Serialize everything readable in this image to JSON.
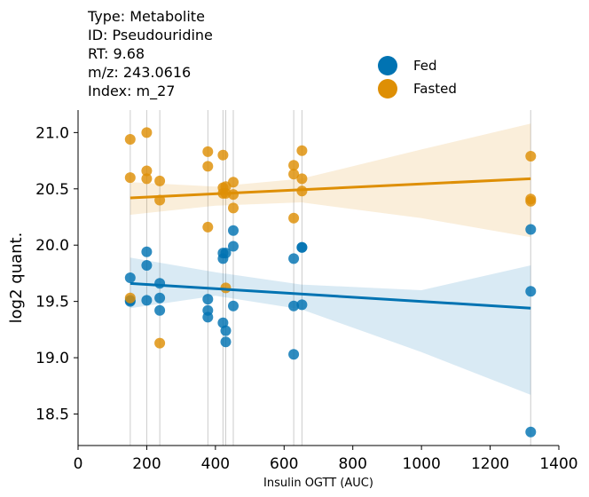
{
  "info": {
    "lines": [
      "Type: Metabolite",
      "ID: Pseudouridine",
      "RT: 9.68",
      "m/z: 243.0616",
      "Index: m_27"
    ]
  },
  "chart_data": {
    "type": "scatter",
    "xlabel": "Insulin OGTT (AUC)",
    "ylabel": "log2 quant.",
    "xlim": [
      0,
      1400
    ],
    "ylim": [
      18.22,
      21.2
    ],
    "x_ticks": [
      "0",
      "200",
      "400",
      "600",
      "800",
      "1000",
      "1200",
      "1400"
    ],
    "y_ticks": [
      "18.5",
      "19.0",
      "19.5",
      "20.0",
      "20.5",
      "21.0"
    ],
    "vertical_reference_lines": [
      152,
      200,
      238,
      378,
      422,
      430,
      452,
      628,
      652,
      1318
    ],
    "legend_position": "upper-right",
    "series": [
      {
        "name": "Fed",
        "color": "#0173b2",
        "points": [
          [
            152,
            19.71
          ],
          [
            152,
            19.51
          ],
          [
            152,
            19.5
          ],
          [
            200,
            19.94
          ],
          [
            200,
            19.82
          ],
          [
            200,
            19.51
          ],
          [
            238,
            19.66
          ],
          [
            238,
            19.53
          ],
          [
            238,
            19.42
          ],
          [
            378,
            19.52
          ],
          [
            378,
            19.42
          ],
          [
            378,
            19.36
          ],
          [
            422,
            19.93
          ],
          [
            422,
            19.88
          ],
          [
            422,
            19.31
          ],
          [
            430,
            19.93
          ],
          [
            430,
            19.24
          ],
          [
            430,
            19.14
          ],
          [
            452,
            20.13
          ],
          [
            452,
            19.99
          ],
          [
            452,
            19.46
          ],
          [
            628,
            19.88
          ],
          [
            628,
            19.46
          ],
          [
            628,
            19.03
          ],
          [
            652,
            19.98
          ],
          [
            652,
            19.98
          ],
          [
            652,
            19.47
          ],
          [
            1318,
            20.14
          ],
          [
            1318,
            19.59
          ],
          [
            1318,
            18.34
          ]
        ],
        "fit": {
          "x": [
            152,
            1318
          ],
          "y": [
            19.66,
            19.44
          ]
        },
        "ci": {
          "x": [
            152,
            400,
            650,
            1000,
            1318
          ],
          "lower": [
            19.44,
            19.55,
            19.43,
            19.05,
            18.67
          ],
          "upper": [
            19.89,
            19.76,
            19.65,
            19.6,
            19.82
          ]
        }
      },
      {
        "name": "Fasted",
        "color": "#de8f05",
        "points": [
          [
            152,
            20.94
          ],
          [
            152,
            20.6
          ],
          [
            152,
            19.53
          ],
          [
            200,
            21.0
          ],
          [
            200,
            20.66
          ],
          [
            200,
            20.59
          ],
          [
            238,
            20.57
          ],
          [
            238,
            20.4
          ],
          [
            238,
            19.13
          ],
          [
            378,
            20.83
          ],
          [
            378,
            20.7
          ],
          [
            378,
            20.16
          ],
          [
            422,
            20.8
          ],
          [
            422,
            20.51
          ],
          [
            422,
            20.46
          ],
          [
            430,
            20.52
          ],
          [
            430,
            20.46
          ],
          [
            430,
            19.62
          ],
          [
            452,
            20.56
          ],
          [
            452,
            20.45
          ],
          [
            452,
            20.33
          ],
          [
            628,
            20.71
          ],
          [
            628,
            20.63
          ],
          [
            628,
            20.24
          ],
          [
            652,
            20.84
          ],
          [
            652,
            20.59
          ],
          [
            652,
            20.48
          ],
          [
            1318,
            20.79
          ],
          [
            1318,
            20.41
          ],
          [
            1318,
            20.39
          ]
        ],
        "fit": {
          "x": [
            152,
            1318
          ],
          "y": [
            20.42,
            20.59
          ]
        },
        "ci": {
          "x": [
            152,
            400,
            650,
            1000,
            1318
          ],
          "lower": [
            20.27,
            20.35,
            20.38,
            20.24,
            20.07
          ],
          "upper": [
            20.56,
            20.52,
            20.59,
            20.85,
            21.08
          ]
        }
      }
    ]
  }
}
